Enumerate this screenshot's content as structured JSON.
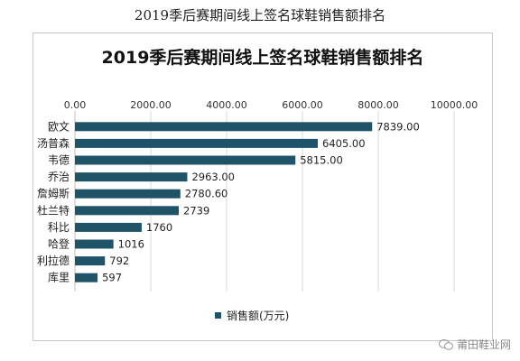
{
  "page_caption": "2019季后赛期间线上签名球鞋销售额排名",
  "watermark_text": "莆田鞋业网",
  "colors": {
    "bar": "#1f5468",
    "grid": "#d9d9d9",
    "axis_text": "#333333"
  },
  "chart_data": {
    "type": "bar",
    "orientation": "horizontal",
    "title": "2019季后赛期间线上签名球鞋销售额排名",
    "categories": [
      "欧文",
      "汤普森",
      "韦德",
      "乔治",
      "詹姆斯",
      "杜兰特",
      "科比",
      "哈登",
      "利拉德",
      "库里"
    ],
    "values": [
      7839,
      6405,
      5815,
      2963,
      2780.6,
      2739,
      1760,
      1016,
      792,
      597
    ],
    "value_labels": [
      "7839.00",
      "6405.00",
      "5815.00",
      "2963.00",
      "2780.60",
      "2739",
      "1760",
      "1016",
      "792",
      "597"
    ],
    "xlim": [
      0,
      10000
    ],
    "x_ticks": [
      "0.00",
      "2000.00",
      "4000.00",
      "6000.00",
      "8000.00",
      "10000.00"
    ],
    "x_tick_values": [
      0,
      2000,
      4000,
      6000,
      8000,
      10000
    ],
    "x_axis_position": "top",
    "grid": true,
    "legend": {
      "position": "bottom",
      "entries": [
        "销售额(万元)"
      ]
    }
  }
}
